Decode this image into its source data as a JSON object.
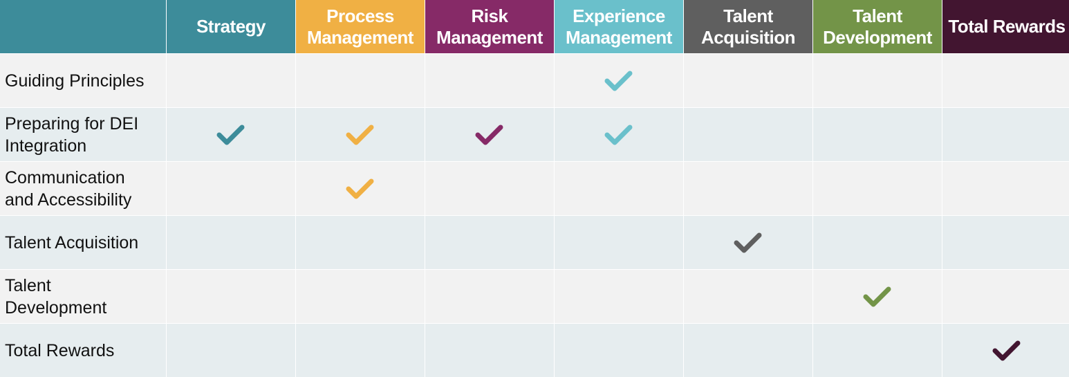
{
  "colors": {
    "corner": "#3d8c9a",
    "row_odd": "#f2f2f2",
    "row_even": "#e6edef"
  },
  "columns": [
    {
      "label": "Strategy",
      "color": "#3d8c9a",
      "key": "strategy"
    },
    {
      "label": "Process\nManagement",
      "color": "#f0b044",
      "key": "process-management"
    },
    {
      "label": "Risk\nManagement",
      "color": "#862a67",
      "key": "risk-management"
    },
    {
      "label": "Experience\nManagement",
      "color": "#6ac0cb",
      "key": "experience-management"
    },
    {
      "label": "Talent\nAcquisition",
      "color": "#5f5f5f",
      "key": "talent-acquisition"
    },
    {
      "label": "Talent\nDevelopment",
      "color": "#739448",
      "key": "talent-development"
    },
    {
      "label": "Total Rewards",
      "color": "#421530",
      "key": "total-rewards"
    }
  ],
  "rows": [
    {
      "label": "Guiding Principles",
      "checks": [
        false,
        false,
        false,
        true,
        false,
        false,
        false
      ]
    },
    {
      "label": "Preparing for DEI\nIntegration",
      "checks": [
        true,
        true,
        true,
        true,
        false,
        false,
        false
      ]
    },
    {
      "label": "Communication\nand Accessibility",
      "checks": [
        false,
        true,
        false,
        false,
        false,
        false,
        false
      ]
    },
    {
      "label": "Talent Acquisition",
      "checks": [
        false,
        false,
        false,
        false,
        true,
        false,
        false
      ]
    },
    {
      "label": "Talent\nDevelopment",
      "checks": [
        false,
        false,
        false,
        false,
        false,
        true,
        false
      ]
    },
    {
      "label": "Total Rewards",
      "checks": [
        false,
        false,
        false,
        false,
        false,
        false,
        true
      ]
    }
  ],
  "icons": {
    "check": "checkmark-icon"
  }
}
